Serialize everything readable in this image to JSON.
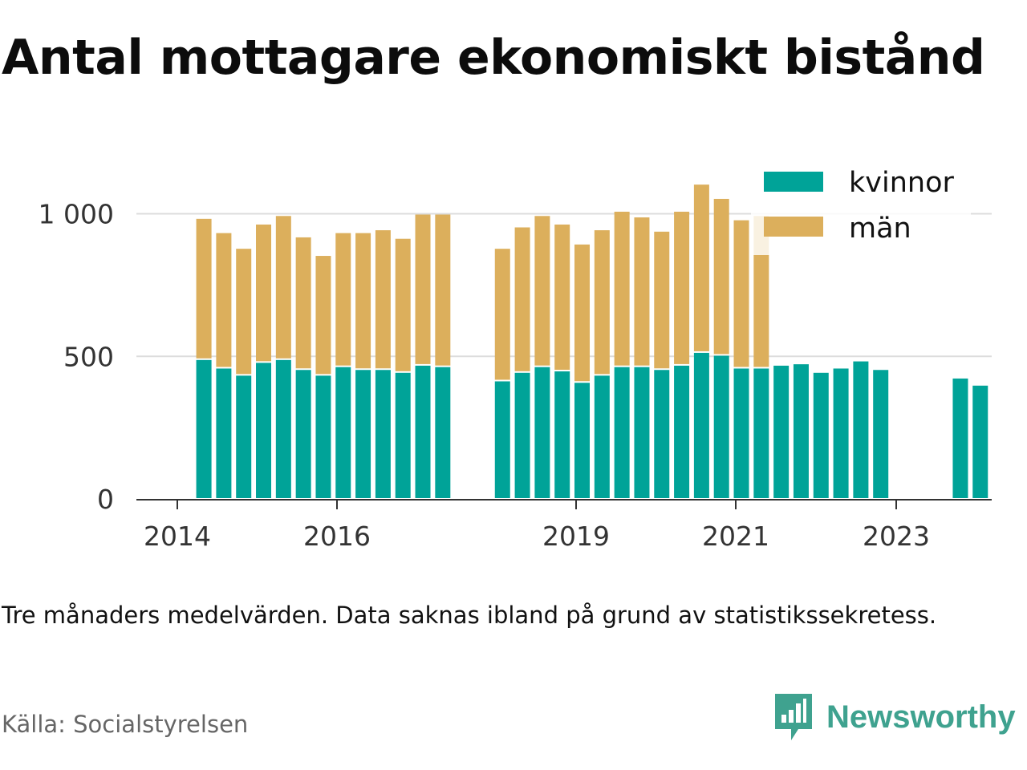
{
  "title": "Antal mottagare ekonomiskt bistånd",
  "note": "Tre månaders medelvärden. Data saknas ibland på grund av statistikssekretess.",
  "source": "Källa: Socialstyrelsen",
  "brand": {
    "name": "Newsworthy",
    "icon": "newsworthy-logo-icon",
    "color": "#3fa28f"
  },
  "colors": {
    "kvinnor": "#00a398",
    "man": "#dcaf5c",
    "grid": "#dddddd",
    "axis": "#333333"
  },
  "chart_data": {
    "type": "bar",
    "stacked": true,
    "x_axis": {
      "type": "time",
      "start": "2014-01",
      "end": "2024-06",
      "ticks": [
        "2014",
        "2016",
        "2019",
        "2021",
        "2023"
      ]
    },
    "y_axis": {
      "ticks": [
        0,
        500,
        1000
      ],
      "tick_labels": [
        "0",
        "500",
        "1 000"
      ],
      "ylim": [
        0,
        1150
      ]
    },
    "grid": true,
    "legend_position": "top-right",
    "categories": [
      "2014-05",
      "2014-08",
      "2014-11",
      "2015-02",
      "2015-05",
      "2015-08",
      "2015-11",
      "2016-02",
      "2016-05",
      "2016-08",
      "2016-11",
      "2017-02",
      "2017-05",
      "2017-08",
      "2017-11",
      "2018-02",
      "2018-05",
      "2018-08",
      "2018-11",
      "2019-02",
      "2019-05",
      "2019-08",
      "2019-11",
      "2020-02",
      "2020-05",
      "2020-08",
      "2020-11",
      "2021-02",
      "2021-05",
      "2021-08",
      "2021-11",
      "2022-02",
      "2022-05",
      "2022-08",
      "2022-11",
      "2023-02",
      "2023-05",
      "2023-08",
      "2023-11",
      "2024-02"
    ],
    "series": [
      {
        "name": "kvinnor",
        "values": [
          490,
          460,
          435,
          480,
          490,
          455,
          435,
          465,
          455,
          455,
          445,
          470,
          465,
          null,
          null,
          415,
          445,
          465,
          450,
          410,
          435,
          465,
          465,
          455,
          470,
          515,
          505,
          460,
          460,
          470,
          475,
          445,
          460,
          485,
          455,
          null,
          null,
          null,
          425,
          400
        ]
      },
      {
        "name": "män",
        "values": [
          495,
          475,
          445,
          485,
          505,
          465,
          420,
          470,
          480,
          490,
          470,
          530,
          535,
          null,
          null,
          465,
          510,
          530,
          515,
          485,
          510,
          545,
          525,
          485,
          540,
          590,
          550,
          520,
          535,
          null,
          null,
          null,
          null,
          null,
          null,
          null,
          null,
          null,
          null,
          null
        ]
      }
    ]
  }
}
